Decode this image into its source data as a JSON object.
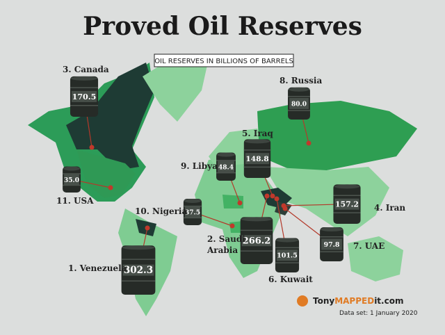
{
  "title": "Proved Oil Reserves",
  "subtitle": "OIL RESERVES IN BILLIONS OF BARRELS",
  "barrels": [
    {
      "label": "1. Venezuela",
      "value": 302.3
    },
    {
      "label": "2. Saudi Arabia",
      "value": 266.2
    },
    {
      "label": "3. Canada",
      "value": 170.5
    },
    {
      "label": "4. Iran",
      "value": 157.2
    },
    {
      "label": "5. Iraq",
      "value": 148.8
    },
    {
      "label": "6. Kuwait",
      "value": 101.5
    },
    {
      "label": "7. UAE",
      "value": 97.8
    },
    {
      "label": "8. Russia",
      "value": 80,
      "value_label": "80.0"
    },
    {
      "label": "9. Libya",
      "value": 48.4
    },
    {
      "label": "10. Nigeria",
      "value": 37.5
    },
    {
      "label": "11. USA",
      "value": 35,
      "value_label": "35.0"
    }
  ],
  "footer": {
    "brand_start": "Tony",
    "brand_mid": "MAPPED",
    "brand_end": "it.com",
    "dataset": "Data set: 1 January 2020"
  }
}
